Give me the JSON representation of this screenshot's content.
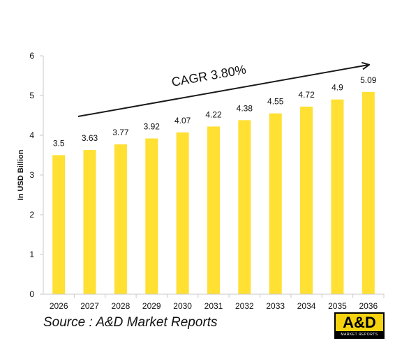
{
  "chart_data": {
    "type": "bar",
    "categories": [
      "2026",
      "2027",
      "2028",
      "2029",
      "2030",
      "2031",
      "2032",
      "2033",
      "2034",
      "2035",
      "2036"
    ],
    "values": [
      3.5,
      3.63,
      3.77,
      3.92,
      4.07,
      4.22,
      4.38,
      4.55,
      4.72,
      4.9,
      5.09
    ],
    "value_labels": [
      "3.5",
      "3.63",
      "3.77",
      "3.92",
      "4.07",
      "4.22",
      "4.38",
      "4.55",
      "4.72",
      "4.9",
      "5.09"
    ],
    "ylabel": "In USD Billion",
    "ylim": [
      0,
      6
    ],
    "yticks": [
      0,
      1,
      2,
      3,
      4,
      5,
      6
    ],
    "grid": false,
    "annotation": "CAGR 3.80%",
    "bar_color": "#ffe033",
    "axis_color": "#c8c8c8"
  },
  "source": "Source : A&D Market Reports",
  "logo": {
    "main": "A&D",
    "sub": "MARKET REPORTS"
  }
}
